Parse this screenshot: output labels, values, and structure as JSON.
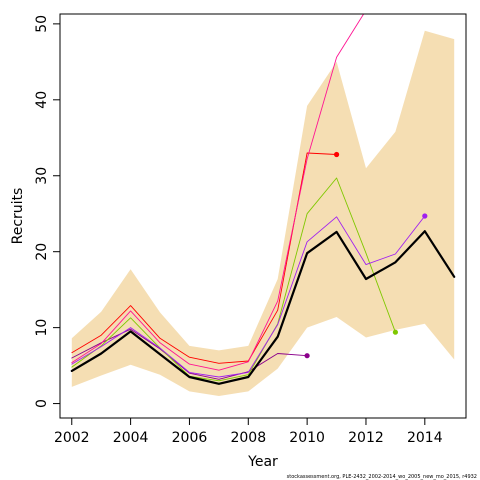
{
  "chart_data": {
    "type": "line",
    "title": "",
    "xlabel": "Year",
    "ylabel": "Recruits",
    "xlim": [
      2001.6,
      2015.4
    ],
    "ylim": [
      -1.9,
      51.3
    ],
    "x_ticks": [
      2002,
      2004,
      2006,
      2008,
      2010,
      2012,
      2014
    ],
    "y_ticks": [
      0,
      10,
      20,
      30,
      40,
      50
    ],
    "grid": false,
    "legend": "none",
    "colors": {
      "band": "#f5deb3",
      "main": "#000000"
    },
    "band": {
      "x": [
        2002,
        2003,
        2004,
        2005,
        2006,
        2007,
        2008,
        2009,
        2010,
        2011,
        2012,
        2013,
        2014,
        2015
      ],
      "lower": [
        2.2,
        3.7,
        5.1,
        3.8,
        1.6,
        1.0,
        1.6,
        4.6,
        10.0,
        11.4,
        8.7,
        9.7,
        10.5,
        5.8
      ],
      "upper": [
        8.6,
        12.1,
        17.7,
        12.0,
        7.6,
        7.0,
        7.6,
        16.4,
        39.2,
        45.0,
        31.0,
        35.8,
        49.1,
        48.0
      ]
    },
    "series": [
      {
        "color": "#000000",
        "width": 2.2,
        "x": [
          2002,
          2003,
          2004,
          2005,
          2006,
          2007,
          2008,
          2009,
          2010,
          2011,
          2012,
          2013,
          2014,
          2015
        ],
        "values": [
          4.3,
          6.6,
          9.5,
          6.5,
          3.5,
          2.6,
          3.5,
          8.8,
          19.8,
          22.6,
          16.4,
          18.6,
          22.7,
          16.7
        ]
      },
      {
        "color": "#8b008b",
        "width": 0.9,
        "x": [
          2002,
          2003,
          2004,
          2005,
          2006,
          2007,
          2008,
          2009,
          2010
        ],
        "values": [
          6.0,
          8.0,
          9.8,
          7.2,
          4.0,
          3.2,
          4.2,
          6.6,
          6.3
        ],
        "endpoint": true
      },
      {
        "color": "#ff0000",
        "width": 0.9,
        "x": [
          2002,
          2003,
          2004,
          2005,
          2006,
          2007,
          2008,
          2009,
          2010,
          2011
        ],
        "values": [
          6.7,
          9.0,
          12.9,
          8.6,
          6.1,
          5.3,
          5.6,
          12.3,
          33.0,
          32.8
        ],
        "endpoint": true
      },
      {
        "color": "#ff1493",
        "width": 0.9,
        "x": [
          2002,
          2003,
          2004,
          2005,
          2006,
          2007,
          2008,
          2009,
          2010,
          2011,
          2012
        ],
        "values": [
          5.4,
          7.9,
          12.2,
          8.0,
          5.2,
          4.4,
          5.5,
          13.5,
          32.2,
          45.6,
          51.8
        ],
        "endpoint": false
      },
      {
        "color": "#7fc800",
        "width": 0.9,
        "x": [
          2002,
          2003,
          2004,
          2005,
          2006,
          2007,
          2008,
          2009,
          2010,
          2011,
          2012,
          2013
        ],
        "values": [
          4.8,
          7.6,
          11.3,
          7.3,
          3.6,
          3.0,
          3.8,
          10.5,
          25.0,
          29.7,
          19.8,
          9.4
        ],
        "endpoint": true
      },
      {
        "color": "#a020f0",
        "width": 0.9,
        "x": [
          2002,
          2003,
          2004,
          2005,
          2006,
          2007,
          2008,
          2009,
          2010,
          2011,
          2012,
          2013,
          2014
        ],
        "values": [
          5.2,
          7.5,
          10.0,
          7.3,
          4.1,
          3.5,
          4.1,
          10.4,
          21.3,
          24.6,
          18.3,
          19.7,
          24.7
        ],
        "endpoint": true
      }
    ]
  },
  "footnote": "stockassessment.org, PLE-2432_2002-2014_wo_2005_new_mo_2015, r4932"
}
